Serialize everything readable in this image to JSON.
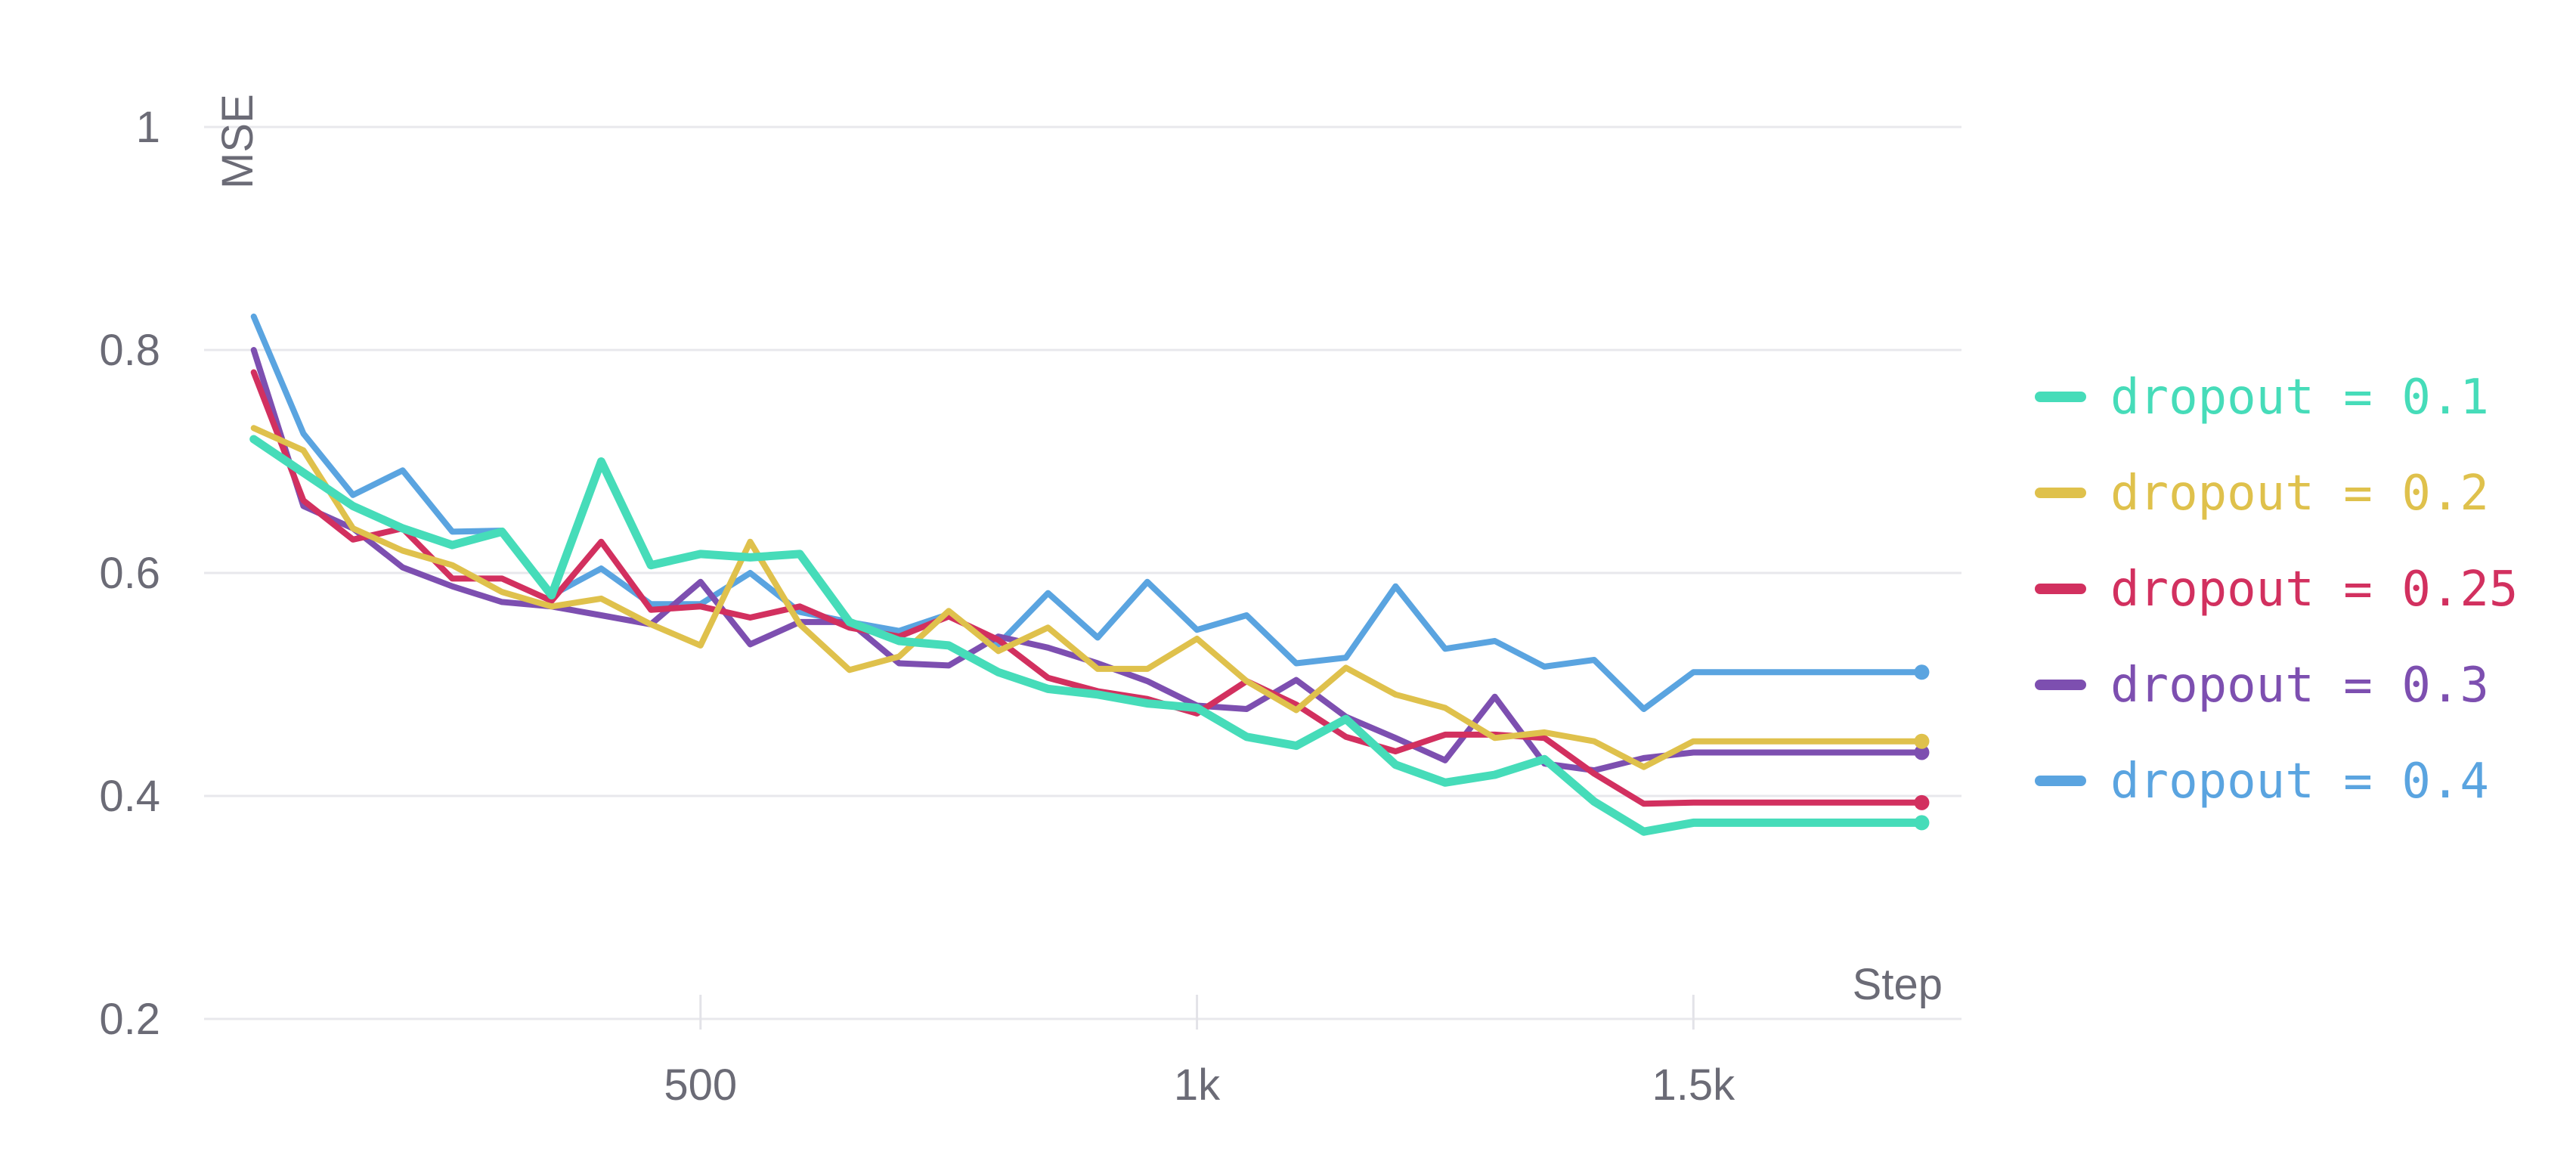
{
  "chart_data": {
    "type": "line",
    "title": "",
    "xlabel": "Step",
    "ylabel": "MSE",
    "xlim": [
      0,
      1770
    ],
    "ylim": [
      0.2,
      1.0
    ],
    "yticks": [
      {
        "value": 0.2,
        "label": "0.2"
      },
      {
        "value": 0.4,
        "label": "0.4"
      },
      {
        "value": 0.6,
        "label": "0.6"
      },
      {
        "value": 0.8,
        "label": "0.8"
      },
      {
        "value": 1.0,
        "label": "1"
      }
    ],
    "xticks": [
      {
        "value": 500,
        "label": "500"
      },
      {
        "value": 1000,
        "label": "1k"
      },
      {
        "value": 1500,
        "label": "1.5k"
      }
    ],
    "grid": true,
    "legend_position": "right",
    "x": [
      50,
      100,
      150,
      200,
      250,
      300,
      350,
      400,
      450,
      500,
      550,
      600,
      650,
      700,
      750,
      800,
      850,
      900,
      950,
      1000,
      1050,
      1100,
      1150,
      1200,
      1250,
      1300,
      1350,
      1400,
      1450,
      1500,
      1550,
      1600,
      1650,
      1700,
      1730
    ],
    "series": [
      {
        "name": "dropout = 0.1",
        "color": "#46dcb9",
        "values": [
          0.72,
          0.69,
          0.66,
          0.64,
          0.625,
          0.637,
          0.58,
          0.7,
          0.607,
          0.617,
          0.614,
          0.617,
          0.556,
          0.539,
          0.535,
          0.511,
          0.496,
          0.491,
          0.483,
          0.479,
          0.453,
          0.445,
          0.469,
          0.428,
          0.412,
          0.419,
          0.433,
          0.395,
          0.368,
          0.376,
          0.376,
          0.376,
          0.376,
          0.376,
          0.376
        ]
      },
      {
        "name": "dropout = 0.2",
        "color": "#dfc14c",
        "values": [
          0.73,
          0.71,
          0.64,
          0.62,
          0.607,
          0.583,
          0.57,
          0.577,
          0.554,
          0.535,
          0.628,
          0.554,
          0.513,
          0.525,
          0.566,
          0.53,
          0.551,
          0.514,
          0.514,
          0.541,
          0.503,
          0.477,
          0.515,
          0.491,
          0.479,
          0.452,
          0.457,
          0.449,
          0.426,
          0.449,
          0.449,
          0.449,
          0.449,
          0.449,
          0.449
        ]
      },
      {
        "name": "dropout = 0.25",
        "color": "#d2305f",
        "values": [
          0.78,
          0.665,
          0.63,
          0.64,
          0.595,
          0.595,
          0.575,
          0.628,
          0.567,
          0.57,
          0.56,
          0.57,
          0.551,
          0.543,
          0.561,
          0.54,
          0.506,
          0.494,
          0.487,
          0.474,
          0.503,
          0.482,
          0.453,
          0.44,
          0.455,
          0.455,
          0.452,
          0.42,
          0.393,
          0.394,
          0.394,
          0.394,
          0.394,
          0.394,
          0.394
        ]
      },
      {
        "name": "dropout = 0.3",
        "color": "#7d4fb0",
        "values": [
          0.8,
          0.66,
          0.64,
          0.605,
          0.588,
          0.574,
          0.57,
          0.562,
          0.554,
          0.592,
          0.536,
          0.556,
          0.556,
          0.519,
          0.517,
          0.543,
          0.533,
          0.519,
          0.503,
          0.481,
          0.478,
          0.504,
          0.471,
          0.452,
          0.432,
          0.489,
          0.429,
          0.423,
          0.434,
          0.439,
          0.439,
          0.439,
          0.439,
          0.439,
          0.439
        ]
      },
      {
        "name": "dropout = 0.4",
        "color": "#5aa4e0",
        "values": [
          0.83,
          0.725,
          0.67,
          0.692,
          0.637,
          0.638,
          0.58,
          0.604,
          0.572,
          0.572,
          0.6,
          0.565,
          0.556,
          0.548,
          0.563,
          0.536,
          0.582,
          0.542,
          0.592,
          0.549,
          0.562,
          0.519,
          0.524,
          0.588,
          0.532,
          0.539,
          0.516,
          0.522,
          0.478,
          0.511,
          0.511,
          0.511,
          0.511,
          0.511,
          0.511
        ]
      }
    ]
  }
}
